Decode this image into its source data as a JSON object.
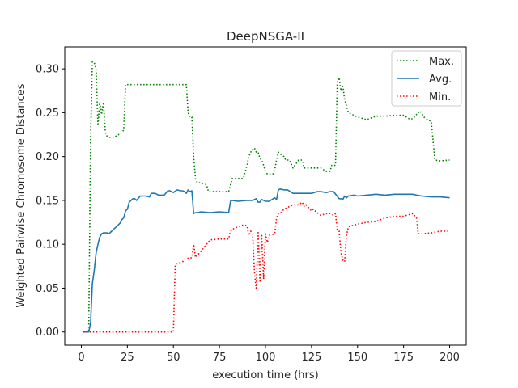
{
  "chart_data": {
    "type": "line",
    "title": "DeepNSGA-II",
    "xlabel": "execution time (hrs)",
    "ylabel": "Weighted Pairwise Chromosome Distances",
    "xlim": [
      -9,
      209
    ],
    "ylim": [
      -0.015,
      0.325
    ],
    "xticks": [
      0,
      25,
      50,
      75,
      100,
      125,
      150,
      175,
      200
    ],
    "yticks": [
      0.0,
      0.05,
      0.1,
      0.15,
      0.2,
      0.25,
      0.3
    ],
    "ytick_labels": [
      "0.00",
      "0.05",
      "0.10",
      "0.15",
      "0.20",
      "0.25",
      "0.30"
    ],
    "grid": false,
    "legend": "top-right",
    "series": [
      {
        "name": "Max.",
        "color": "#008000",
        "style": "dotted",
        "x": [
          1,
          4,
          5,
          6,
          7,
          8,
          9,
          10,
          11,
          12,
          13,
          14,
          15,
          18,
          20,
          21,
          22,
          23,
          24,
          25,
          30,
          35,
          40,
          45,
          50,
          55,
          56,
          57,
          58,
          59,
          60,
          61,
          62,
          63,
          65,
          68,
          69,
          70,
          75,
          80,
          81,
          82,
          85,
          88,
          90,
          91,
          92,
          93,
          94,
          95,
          96,
          97,
          98,
          99,
          100,
          101,
          102,
          103,
          104,
          105,
          106,
          107,
          108,
          110,
          111,
          113,
          115,
          118,
          120,
          121,
          125,
          130,
          133,
          135,
          136,
          137,
          138,
          139,
          140,
          141,
          142,
          143,
          145,
          150,
          155,
          160,
          165,
          170,
          175,
          178,
          180,
          182,
          184,
          186,
          188,
          190,
          192,
          195,
          200
        ],
        "y": [
          0.0,
          0.0,
          0.22,
          0.308,
          0.307,
          0.3,
          0.235,
          0.262,
          0.248,
          0.262,
          0.228,
          0.223,
          0.222,
          0.222,
          0.225,
          0.225,
          0.228,
          0.23,
          0.282,
          0.282,
          0.282,
          0.282,
          0.282,
          0.282,
          0.282,
          0.282,
          0.282,
          0.282,
          0.25,
          0.245,
          0.245,
          0.2,
          0.175,
          0.17,
          0.17,
          0.168,
          0.16,
          0.16,
          0.16,
          0.16,
          0.168,
          0.175,
          0.175,
          0.175,
          0.19,
          0.2,
          0.205,
          0.208,
          0.21,
          0.205,
          0.205,
          0.198,
          0.196,
          0.19,
          0.183,
          0.18,
          0.18,
          0.18,
          0.18,
          0.185,
          0.196,
          0.205,
          0.203,
          0.2,
          0.196,
          0.196,
          0.187,
          0.196,
          0.196,
          0.187,
          0.187,
          0.187,
          0.183,
          0.183,
          0.19,
          0.19,
          0.19,
          0.285,
          0.29,
          0.275,
          0.28,
          0.265,
          0.25,
          0.245,
          0.242,
          0.246,
          0.246,
          0.247,
          0.247,
          0.243,
          0.243,
          0.248,
          0.252,
          0.245,
          0.242,
          0.24,
          0.196,
          0.195,
          0.196
        ]
      },
      {
        "name": "Avg.",
        "color": "#1f77b4",
        "style": "solid",
        "x": [
          1,
          4,
          5,
          6,
          7,
          8,
          9,
          10,
          11,
          12,
          13,
          14,
          15,
          16,
          17,
          18,
          19,
          20,
          21,
          22,
          23,
          24,
          25,
          26,
          27,
          28,
          29,
          30,
          32,
          35,
          37,
          38,
          40,
          42,
          45,
          47,
          48,
          50,
          52,
          54,
          55,
          56,
          57,
          58,
          59,
          60,
          61,
          62,
          63,
          65,
          70,
          75,
          80,
          81,
          82,
          85,
          90,
          93,
          95,
          96,
          97,
          98,
          100,
          102,
          105,
          106,
          107,
          108,
          110,
          112,
          115,
          120,
          125,
          128,
          130,
          133,
          135,
          137,
          140,
          141,
          142,
          143,
          144,
          145,
          148,
          150,
          155,
          160,
          165,
          170,
          175,
          180,
          182,
          185,
          190,
          195,
          200
        ],
        "y": [
          0.0,
          0.0,
          0.01,
          0.055,
          0.07,
          0.09,
          0.1,
          0.108,
          0.112,
          0.113,
          0.113,
          0.113,
          0.112,
          0.114,
          0.116,
          0.118,
          0.12,
          0.122,
          0.124,
          0.128,
          0.13,
          0.138,
          0.14,
          0.148,
          0.15,
          0.152,
          0.152,
          0.15,
          0.155,
          0.155,
          0.154,
          0.158,
          0.158,
          0.156,
          0.156,
          0.161,
          0.161,
          0.159,
          0.162,
          0.161,
          0.161,
          0.16,
          0.158,
          0.162,
          0.16,
          0.161,
          0.135,
          0.136,
          0.136,
          0.137,
          0.136,
          0.137,
          0.136,
          0.149,
          0.15,
          0.149,
          0.15,
          0.15,
          0.152,
          0.148,
          0.148,
          0.151,
          0.149,
          0.149,
          0.153,
          0.151,
          0.162,
          0.163,
          0.162,
          0.162,
          0.158,
          0.158,
          0.158,
          0.16,
          0.16,
          0.159,
          0.16,
          0.16,
          0.152,
          0.152,
          0.151,
          0.155,
          0.153,
          0.155,
          0.156,
          0.155,
          0.156,
          0.157,
          0.156,
          0.157,
          0.157,
          0.157,
          0.156,
          0.155,
          0.154,
          0.154,
          0.153
        ]
      },
      {
        "name": "Min.",
        "color": "#ff0000",
        "style": "dotted",
        "x": [
          1,
          5,
          10,
          20,
          30,
          40,
          45,
          50,
          51,
          52,
          55,
          56,
          57,
          58,
          59,
          60,
          61,
          62,
          65,
          68,
          70,
          75,
          80,
          81,
          82,
          85,
          88,
          90,
          91,
          92,
          93,
          94,
          95,
          96,
          97,
          98,
          99,
          100,
          101,
          102,
          105,
          106,
          107,
          108,
          110,
          112,
          115,
          118,
          120,
          121,
          122,
          125,
          126,
          128,
          130,
          133,
          135,
          137,
          138,
          139,
          140,
          141,
          142,
          143,
          144,
          145,
          150,
          155,
          160,
          165,
          170,
          175,
          180,
          182,
          183,
          185,
          190,
          195,
          200
        ],
        "y": [
          0.0,
          0.0,
          0.0,
          0.0,
          0.0,
          0.0,
          0.0,
          0.0,
          0.076,
          0.078,
          0.08,
          0.083,
          0.084,
          0.084,
          0.084,
          0.085,
          0.1,
          0.085,
          0.092,
          0.1,
          0.105,
          0.106,
          0.106,
          0.115,
          0.117,
          0.12,
          0.122,
          0.121,
          0.11,
          0.115,
          0.112,
          0.07,
          0.048,
          0.115,
          0.058,
          0.11,
          0.06,
          0.112,
          0.102,
          0.11,
          0.112,
          0.13,
          0.135,
          0.135,
          0.14,
          0.142,
          0.145,
          0.145,
          0.148,
          0.143,
          0.145,
          0.138,
          0.14,
          0.136,
          0.133,
          0.135,
          0.135,
          0.133,
          0.135,
          0.116,
          0.115,
          0.09,
          0.082,
          0.08,
          0.11,
          0.12,
          0.123,
          0.125,
          0.126,
          0.13,
          0.132,
          0.132,
          0.135,
          0.13,
          0.112,
          0.112,
          0.113,
          0.115,
          0.115
        ]
      }
    ]
  }
}
